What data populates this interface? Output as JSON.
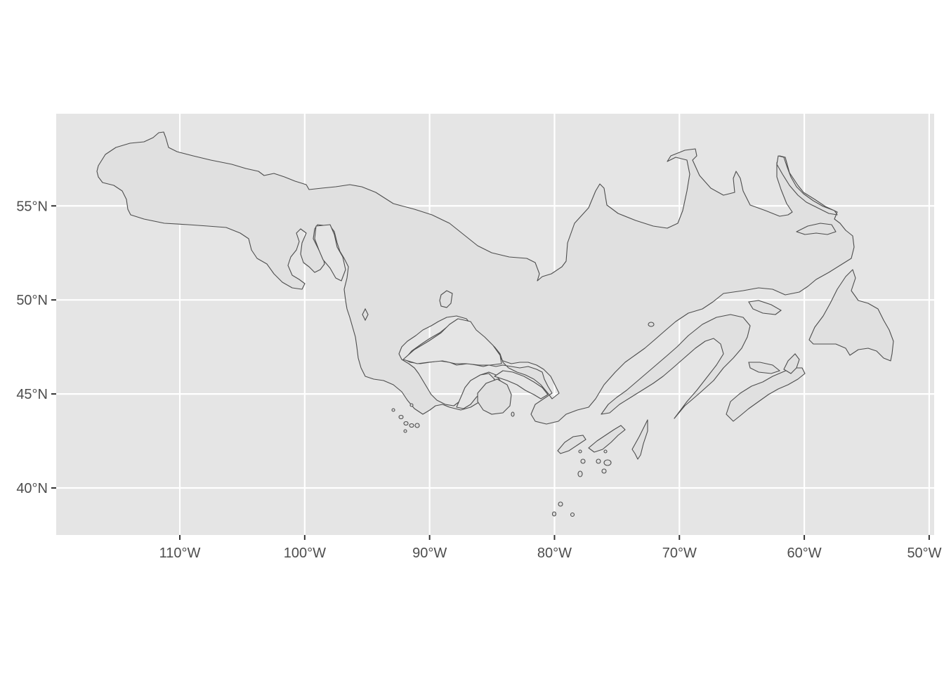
{
  "map": {
    "x_axis": {
      "ticks": [
        {
          "value": -110,
          "label": "110°W"
        },
        {
          "value": -100,
          "label": "100°W"
        },
        {
          "value": -90,
          "label": "90°W"
        },
        {
          "value": -80,
          "label": "80°W"
        },
        {
          "value": -70,
          "label": "70°W"
        },
        {
          "value": -60,
          "label": "60°W"
        },
        {
          "value": -50,
          "label": "50°W"
        }
      ],
      "range": [
        -119.9,
        -49.6
      ]
    },
    "y_axis": {
      "ticks": [
        {
          "value": 40,
          "label": "40°N"
        },
        {
          "value": 45,
          "label": "45°N"
        },
        {
          "value": 50,
          "label": "50°N"
        },
        {
          "value": 55,
          "label": "55°N"
        }
      ],
      "range": [
        37.5,
        59.9
      ]
    },
    "panel_background": "#e5e5e5",
    "grid_color": "#ffffff",
    "feature_fill": "#e0e0e0",
    "feature_outline": "#4d4d4d"
  }
}
